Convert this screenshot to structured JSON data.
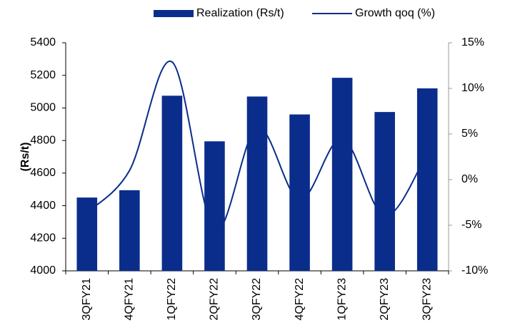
{
  "chart_data": {
    "type": "bar",
    "categories": [
      "3QFY21",
      "4QFY21",
      "1QFY22",
      "2QFY22",
      "3QFY22",
      "4QFY22",
      "1QFY23",
      "2QFY23",
      "3QFY23"
    ],
    "ylabel": "(Rs/t)",
    "series": [
      {
        "name": "Realization (Rs/t)",
        "type": "bar",
        "color": "#0a2d8c",
        "values": [
          4450,
          4495,
          5075,
          4795,
          5070,
          4960,
          5185,
          4975,
          5120
        ]
      },
      {
        "name": "Growth qoq (%)",
        "type": "line",
        "axis": "y2",
        "color": "#0a2d8c",
        "values": [
          -3.6,
          1.0,
          12.9,
          -5.5,
          5.7,
          -2.2,
          4.5,
          -4.0,
          2.9
        ]
      }
    ],
    "ylim": [
      4000,
      5400
    ],
    "yticks": [
      4000,
      4200,
      4400,
      4600,
      4800,
      5000,
      5200,
      5400
    ],
    "y2lim": [
      -10,
      15
    ],
    "y2ticks": [
      {
        "value": -10,
        "label": "-10%"
      },
      {
        "value": -5,
        "label": "-5%"
      },
      {
        "value": 0,
        "label": "0%"
      },
      {
        "value": 5,
        "label": "5%"
      },
      {
        "value": 10,
        "label": "10%"
      },
      {
        "value": 15,
        "label": "15%"
      }
    ],
    "legend": "top"
  }
}
